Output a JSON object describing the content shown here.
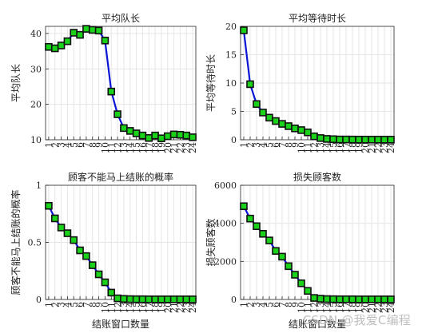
{
  "watermark": "CSDN @我爱C编程",
  "chart_data": [
    {
      "type": "line",
      "title": "平均队长",
      "xlabel": "",
      "ylabel": "平均队长",
      "ylim": [
        10,
        42
      ],
      "yticks": [
        10,
        20,
        30,
        40
      ],
      "x": [
        1,
        2,
        3,
        4,
        5,
        6,
        7,
        8,
        9,
        10,
        11,
        12,
        13,
        14,
        15,
        16,
        17,
        18,
        19,
        20,
        21,
        22,
        23,
        24
      ],
      "xlim": [
        0.5,
        24.5
      ],
      "values": [
        36.2,
        35.8,
        36.6,
        37.8,
        40.2,
        39.6,
        41.3,
        41.0,
        40.8,
        38.0,
        23.6,
        17.2,
        13.3,
        12.5,
        11.8,
        11.2,
        10.5,
        11.2,
        10.4,
        11.0,
        11.5,
        11.4,
        11.2,
        10.7
      ],
      "line_color": "#0a14d6",
      "marker_color": "#19d219",
      "grid": true
    },
    {
      "type": "line",
      "title": "平均等待时长",
      "xlabel": "",
      "ylabel": "平均等待时长",
      "ylim": [
        0,
        20
      ],
      "yticks": [
        0,
        5,
        10,
        15,
        20
      ],
      "x": [
        1,
        2,
        3,
        4,
        5,
        6,
        7,
        8,
        9,
        10,
        11,
        12,
        13,
        14,
        15,
        16,
        17,
        18,
        19,
        20,
        21,
        22,
        23,
        24
      ],
      "xlim": [
        0.5,
        24.5
      ],
      "values": [
        19.3,
        9.8,
        6.3,
        4.8,
        3.9,
        3.3,
        2.8,
        2.4,
        2.0,
        1.7,
        1.3,
        0.6,
        0.3,
        0.15,
        0.1,
        0.05,
        0.05,
        0.04,
        0.03,
        0.03,
        0.02,
        0.02,
        0.02,
        0.02
      ],
      "line_color": "#0a14d6",
      "marker_color": "#19d219",
      "grid": true
    },
    {
      "type": "line",
      "title": "顾客不能马上结账的概率",
      "xlabel": "结账窗口数量",
      "ylabel": "顾客不能马上结账的概率",
      "ylim": [
        0,
        1
      ],
      "yticks": [
        0,
        0.5,
        1
      ],
      "x": [
        1,
        2,
        3,
        4,
        5,
        6,
        7,
        8,
        9,
        10,
        11,
        12,
        13,
        14,
        15,
        16,
        17,
        18,
        19,
        20,
        21,
        22,
        23,
        24
      ],
      "xlim": [
        0.5,
        24.5
      ],
      "values": [
        0.82,
        0.71,
        0.63,
        0.58,
        0.52,
        0.43,
        0.38,
        0.3,
        0.22,
        0.15,
        0.06,
        0.01,
        0.005,
        0.003,
        0.002,
        0.002,
        0.001,
        0.001,
        0.001,
        0.001,
        0.001,
        0.001,
        0.001,
        0.001
      ],
      "line_color": "#0a14d6",
      "marker_color": "#19d219",
      "grid": true
    },
    {
      "type": "line",
      "title": "损失顾客数",
      "xlabel": "结账窗口数量",
      "ylabel": "损失顾客数",
      "ylim": [
        0,
        6000
      ],
      "yticks": [
        0,
        2000,
        4000,
        6000
      ],
      "x": [
        1,
        2,
        3,
        4,
        5,
        6,
        7,
        8,
        9,
        10,
        11,
        12,
        13,
        14,
        15,
        16,
        17,
        18,
        19,
        20,
        21,
        22,
        23,
        24
      ],
      "xlim": [
        0.5,
        24.5
      ],
      "values": [
        4900,
        4250,
        3850,
        3450,
        3100,
        2550,
        2250,
        1750,
        1300,
        850,
        450,
        80,
        40,
        20,
        15,
        10,
        10,
        10,
        5,
        5,
        5,
        5,
        5,
        5
      ],
      "line_color": "#0a14d6",
      "marker_color": "#19d219",
      "grid": true
    }
  ]
}
